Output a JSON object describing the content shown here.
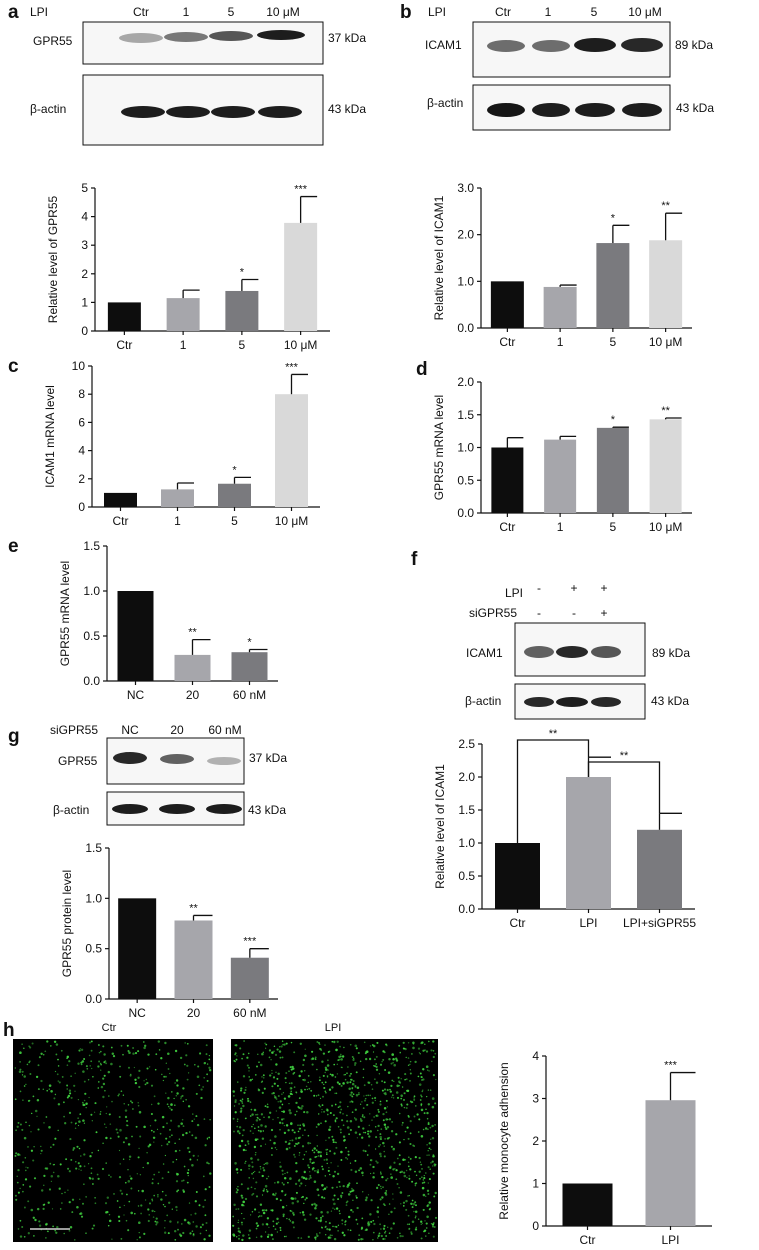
{
  "panel_labels": [
    "a",
    "b",
    "c",
    "d",
    "e",
    "f",
    "g",
    "h"
  ],
  "blots": [
    {
      "id": "a",
      "treatment_label": "LPI",
      "lanes": [
        "Ctr",
        "1",
        "5",
        "10 μM"
      ],
      "rows": [
        {
          "protein": "GPR55",
          "size": "37 kDa",
          "intensity": [
            0.35,
            0.55,
            0.7,
            0.95
          ]
        },
        {
          "protein": "β-actin",
          "size": "43 kDa",
          "intensity": [
            0.95,
            0.95,
            0.95,
            0.95
          ]
        }
      ]
    },
    {
      "id": "b",
      "treatment_label": "LPI",
      "lanes": [
        "Ctr",
        "1",
        "5",
        "10 μM"
      ],
      "rows": [
        {
          "protein": "ICAM1",
          "size": "89 kDa",
          "intensity": [
            0.6,
            0.6,
            0.95,
            0.9
          ]
        },
        {
          "protein": "β-actin",
          "size": "43 kDa",
          "intensity": [
            0.98,
            0.95,
            0.95,
            0.95
          ]
        }
      ]
    },
    {
      "id": "f",
      "conditions": [
        {
          "name": "LPI",
          "values": [
            "-",
            "+",
            "+"
          ]
        },
        {
          "name": "siGPR55",
          "values": [
            "-",
            "-",
            "+"
          ]
        }
      ],
      "rows": [
        {
          "protein": "ICAM1",
          "size": "89 kDa",
          "intensity": [
            0.65,
            0.9,
            0.7
          ]
        },
        {
          "protein": "β-actin",
          "size": "43 kDa",
          "intensity": [
            0.9,
            0.95,
            0.9
          ]
        }
      ]
    },
    {
      "id": "g",
      "treatment_label": "siGPR55",
      "lanes": [
        "NC",
        "20",
        "60 nM"
      ],
      "rows": [
        {
          "protein": "GPR55",
          "size": "37 kDa",
          "intensity": [
            0.9,
            0.65,
            0.3
          ]
        },
        {
          "protein": "β-actin",
          "size": "43 kDa",
          "intensity": [
            0.95,
            0.95,
            0.95
          ]
        }
      ]
    }
  ],
  "chart_data": [
    {
      "id": "a",
      "type": "bar",
      "ylabel": "Relative level of GPR55",
      "categories": [
        "Ctr",
        "1",
        "5",
        "10 μM"
      ],
      "values": [
        1.0,
        1.15,
        1.4,
        3.78
      ],
      "errors": [
        0,
        0.28,
        0.4,
        0.92
      ],
      "significance": [
        "",
        "",
        "*",
        "***"
      ],
      "colors": [
        "#0d0d0d",
        "#a6a6ab",
        "#7a7a7e",
        "#d9d9d9"
      ],
      "ylim": [
        0,
        5
      ],
      "yticks": [
        "0",
        "1",
        "2",
        "3",
        "4",
        "5"
      ]
    },
    {
      "id": "b",
      "type": "bar",
      "ylabel": "Relative level of ICAM1",
      "categories": [
        "Ctr",
        "1",
        "5",
        "10 μM"
      ],
      "values": [
        1.0,
        0.88,
        1.82,
        1.88
      ],
      "errors": [
        0,
        0.04,
        0.38,
        0.58
      ],
      "significance": [
        "",
        "",
        "*",
        "**"
      ],
      "colors": [
        "#0d0d0d",
        "#a6a6ab",
        "#7a7a7e",
        "#d9d9d9"
      ],
      "ylim": [
        0,
        3.0
      ],
      "yticks": [
        "0.0",
        "1.0",
        "2.0",
        "3.0"
      ]
    },
    {
      "id": "c",
      "type": "bar",
      "ylabel": "ICAM1 mRNA level",
      "categories": [
        "Ctr",
        "1",
        "5",
        "10 μM"
      ],
      "values": [
        1.0,
        1.25,
        1.65,
        8.0
      ],
      "errors": [
        0,
        0.45,
        0.45,
        1.4
      ],
      "significance": [
        "",
        "",
        "*",
        "***"
      ],
      "colors": [
        "#0d0d0d",
        "#a6a6ab",
        "#7a7a7e",
        "#d9d9d9"
      ],
      "ylim": [
        0,
        10
      ],
      "yticks": [
        "0",
        "2",
        "4",
        "6",
        "8",
        "10"
      ]
    },
    {
      "id": "d",
      "type": "bar",
      "ylabel": "GPR55 mRNA level",
      "categories": [
        "Ctr",
        "1",
        "5",
        "10 μM"
      ],
      "values": [
        1.0,
        1.12,
        1.3,
        1.43
      ],
      "errors": [
        0.15,
        0.05,
        0.01,
        0.02
      ],
      "significance": [
        "",
        "",
        "*",
        "**"
      ],
      "colors": [
        "#0d0d0d",
        "#a6a6ab",
        "#7a7a7e",
        "#d9d9d9"
      ],
      "ylim": [
        0,
        2.0
      ],
      "yticks": [
        "0.0",
        "0.5",
        "1.0",
        "1.5",
        "2.0"
      ]
    },
    {
      "id": "e",
      "type": "bar",
      "ylabel": "GPR55 mRNA level",
      "categories": [
        "NC",
        "20",
        "60 nM"
      ],
      "values": [
        1.0,
        0.29,
        0.32
      ],
      "errors": [
        0,
        0.17,
        0.03
      ],
      "significance": [
        "",
        "**",
        "*"
      ],
      "colors": [
        "#0d0d0d",
        "#a6a6ab",
        "#7a7a7e"
      ],
      "ylim": [
        0,
        1.5
      ],
      "yticks": [
        "0.0",
        "0.5",
        "1.0",
        "1.5"
      ]
    },
    {
      "id": "g",
      "type": "bar",
      "ylabel": "GPR55 protein level",
      "categories": [
        "NC",
        "20",
        "60 nM"
      ],
      "values": [
        1.0,
        0.78,
        0.41
      ],
      "errors": [
        0,
        0.05,
        0.09
      ],
      "significance": [
        "",
        "**",
        "***"
      ],
      "colors": [
        "#0d0d0d",
        "#a6a6ab",
        "#7a7a7e"
      ],
      "ylim": [
        0,
        1.5
      ],
      "yticks": [
        "0.0",
        "0.5",
        "1.0",
        "1.5"
      ]
    },
    {
      "id": "f",
      "type": "bar",
      "ylabel": "Relative level of  ICAM1",
      "categories": [
        "Ctr",
        "LPI",
        "LPI+siGPR55"
      ],
      "values": [
        1.0,
        2.0,
        1.2
      ],
      "errors": [
        0,
        0.3,
        0.25
      ],
      "significance": [],
      "brackets": [
        {
          "from": 0,
          "to": 1,
          "label": "**"
        },
        {
          "from": 1,
          "to": 2,
          "label": "**"
        }
      ],
      "colors": [
        "#0d0d0d",
        "#a6a6ab",
        "#7a7a7e"
      ],
      "ylim": [
        0,
        2.5
      ],
      "yticks": [
        "0.0",
        "0.5",
        "1.0",
        "1.5",
        "2.0",
        "2.5"
      ]
    },
    {
      "id": "h",
      "type": "bar",
      "ylabel": "Relative monocyte adhension",
      "categories": [
        "Ctr",
        "LPI"
      ],
      "values": [
        1.0,
        2.96
      ],
      "errors": [
        0,
        0.65
      ],
      "significance": [
        "",
        "***"
      ],
      "colors": [
        "#0d0d0d",
        "#a6a6ab"
      ],
      "ylim": [
        0,
        4
      ],
      "yticks": [
        "0",
        "1",
        "2",
        "3",
        "4"
      ]
    }
  ],
  "micrographs": [
    {
      "label": "Ctr",
      "density": 1.0
    },
    {
      "label": "LPI",
      "density": 2.0
    }
  ],
  "colors": {
    "background": "#000000",
    "cells": "#3fcf3f",
    "bar_black": "#0d0d0d"
  }
}
